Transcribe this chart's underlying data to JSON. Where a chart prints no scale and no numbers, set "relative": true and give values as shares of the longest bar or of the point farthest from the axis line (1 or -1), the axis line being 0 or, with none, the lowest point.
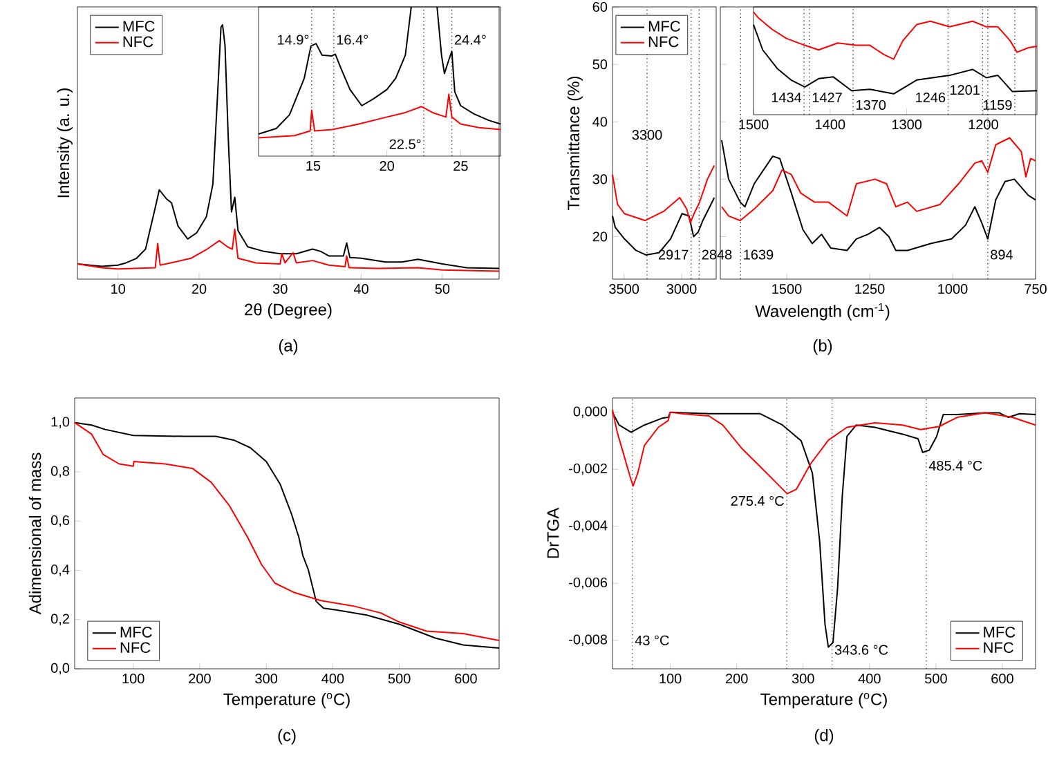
{
  "chart_data": [
    {
      "type": "line",
      "xlabel": "2θ (Degree)",
      "ylabel": "Intensity (a. u.)",
      "relative": true,
      "xlim": [
        5,
        57
      ],
      "xticks": [
        10,
        20,
        30,
        40,
        50
      ],
      "legend": "top left",
      "annotations": [
        "(a)"
      ],
      "series": [
        {
          "name": "MFC",
          "color": "#000000",
          "x": [
            5,
            8,
            10,
            11,
            12.3,
            13.4,
            14.6,
            15.1,
            16,
            16.6,
            17.4,
            18.6,
            19.7,
            20.9,
            21.7,
            22.3,
            22.7,
            22.9,
            23.2,
            23.6,
            24.0,
            24.4,
            24.8,
            26,
            28,
            30,
            32,
            34,
            35,
            36,
            37.8,
            38.2,
            38.6,
            40,
            43,
            45,
            47,
            50,
            53,
            57
          ],
          "values": [
            0.06,
            0.05,
            0.055,
            0.064,
            0.082,
            0.118,
            0.282,
            0.351,
            0.315,
            0.3,
            0.209,
            0.158,
            0.182,
            0.245,
            0.373,
            0.736,
            0.99,
            1,
            0.918,
            0.555,
            0.264,
            0.322,
            0.191,
            0.127,
            0.109,
            0.1,
            0.1,
            0.118,
            0.109,
            0.091,
            0.091,
            0.142,
            0.085,
            0.082,
            0.067,
            0.067,
            0.078,
            0.06,
            0.045,
            0.042
          ]
        },
        {
          "name": "NFC",
          "color": "#ff0000",
          "x": [
            5,
            8,
            10,
            14.6,
            14.9,
            15.2,
            17,
            19,
            21,
            22.5,
            23.5,
            24.1,
            24.4,
            24.8,
            27,
            30,
            30.2,
            30.6,
            31.6,
            32,
            34,
            36,
            38,
            38.2,
            38.5,
            42,
            47,
            50,
            57
          ],
          "values": [
            0.06,
            0.045,
            0.04,
            0.045,
            0.14,
            0.055,
            0.067,
            0.082,
            0.118,
            0.151,
            0.127,
            0.118,
            0.196,
            0.082,
            0.064,
            0.06,
            0.1,
            0.064,
            0.104,
            0.064,
            0.073,
            0.055,
            0.049,
            0.091,
            0.045,
            0.042,
            0.045,
            0.036,
            0.031
          ]
        }
      ]
    },
    {
      "type": "line",
      "relative": true,
      "xlim": [
        11.3,
        27.7
      ],
      "xticks": [
        15,
        20,
        25
      ],
      "tick_labels": "x",
      "ref_lines": [
        {
          "axis": "x",
          "value": 14.9,
          "label": "14.9°",
          "color": "#333333",
          "line_style": "dotted"
        },
        {
          "axis": "x",
          "value": 16.4,
          "label": "16.4°",
          "color": "#333333",
          "line_style": "dotted"
        },
        {
          "axis": "x",
          "value": 22.5,
          "label": "22.5°",
          "color": "#333333",
          "line_style": "dotted"
        },
        {
          "axis": "x",
          "value": 24.4,
          "label": "24.4°",
          "color": "#333333",
          "line_style": "dotted"
        }
      ],
      "series": [
        {
          "color": "#000000",
          "x": [
            11.3,
            12.5,
            13.4,
            14.4,
            14.85,
            15.2,
            15.6,
            16.25,
            16.5,
            16.9,
            17.5,
            18.3,
            19.1,
            20.0,
            20.6,
            21.25,
            21.65,
            22.5,
            23.4,
            23.7,
            23.9,
            24.2,
            24.4,
            24.6,
            25.0,
            25.9,
            26.9,
            27.7
          ],
          "values": [
            0.148,
            0.185,
            0.277,
            0.523,
            0.738,
            0.754,
            0.677,
            0.671,
            0.683,
            0.585,
            0.446,
            0.338,
            0.385,
            0.446,
            0.523,
            0.677,
            1.0,
            null,
            1.0,
            0.677,
            0.554,
            0.646,
            0.702,
            0.431,
            0.338,
            0.283,
            0.24,
            0.215
          ]
        },
        {
          "color": "#ff0000",
          "x": [
            11.3,
            13.75,
            14.8,
            14.9,
            15.1,
            16.3,
            18.1,
            20,
            21.25,
            22.35,
            23.1,
            24.0,
            24.2,
            24.4,
            25,
            26.25,
            27.7
          ],
          "values": [
            0.123,
            0.138,
            0.169,
            0.308,
            0.169,
            0.178,
            0.215,
            0.262,
            0.292,
            0.332,
            0.292,
            0.262,
            0.415,
            0.262,
            0.215,
            0.191,
            0.178
          ]
        }
      ]
    },
    {
      "type": "line",
      "ylabel": "Transmittance (%)",
      "xlim": [
        3600,
        2700
      ],
      "xticks": [
        3500,
        3000
      ],
      "ylim": [
        12.6,
        60
      ],
      "yticks": [
        20,
        30,
        40,
        50,
        60
      ],
      "legend": "top left",
      "ref_lines": [
        {
          "axis": "x",
          "value": 3300,
          "label": "3300",
          "color": "#333333",
          "line_style": "dotted"
        },
        {
          "axis": "x",
          "value": 2917,
          "label": "2917",
          "color": "#333333",
          "line_style": "dotted"
        },
        {
          "axis": "x",
          "value": 2848,
          "label": "2848",
          "color": "#333333",
          "line_style": "dotted"
        }
      ],
      "series": [
        {
          "name": "MFC",
          "color": "#000000",
          "x": [
            3600,
            3576,
            3496,
            3396,
            3308,
            3196,
            3096,
            2996,
            2936,
            2896,
            2856,
            2816,
            2716
          ],
          "values": [
            23.6,
            21.6,
            19.6,
            17.6,
            16.8,
            17.2,
            19.6,
            24,
            23.6,
            20,
            20.8,
            22.8,
            26.8
          ]
        },
        {
          "name": "NFC",
          "color": "#ff0000",
          "x": [
            3600,
            3556,
            3496,
            3316,
            3156,
            3016,
            2956,
            2924,
            2892,
            2844,
            2776,
            2716
          ],
          "values": [
            30.8,
            25.6,
            24,
            22.8,
            24.4,
            26.8,
            24.8,
            22.4,
            24,
            26,
            30,
            32.4
          ]
        }
      ]
    },
    {
      "type": "line",
      "xlabel": "Wavelength (cm$^{-1}$)",
      "xlim": [
        1700,
        750
      ],
      "xticks": [
        1500,
        1250,
        1000,
        750
      ],
      "ylim": [
        12.6,
        60
      ],
      "yticks": [
        20,
        30,
        40,
        50,
        60
      ],
      "tick_labels": "x",
      "ref_lines": [
        {
          "axis": "x",
          "value": 1639,
          "label": "1639",
          "color": "#333333",
          "line_style": "dotted"
        },
        {
          "axis": "x",
          "value": 894,
          "label": "894",
          "color": "#333333",
          "line_style": "dotted"
        }
      ],
      "annotations": [
        "(b)"
      ],
      "series": [
        {
          "color": "#000000",
          "x": [
            1696,
            1675,
            1640,
            1626,
            1598,
            1542,
            1521,
            1486,
            1451,
            1423,
            1395,
            1367,
            1318,
            1290,
            1255,
            1220,
            1192,
            1171,
            1136,
            1066,
            1003,
            961,
            933,
            912,
            894,
            870,
            842,
            814,
            772,
            750
          ],
          "values": [
            36.8,
            30,
            26,
            25.2,
            29.2,
            34,
            33.6,
            27.6,
            21.2,
            18.8,
            20.4,
            18,
            17.6,
            19.6,
            20.4,
            21.6,
            20,
            17.6,
            17.6,
            18.8,
            19.6,
            22,
            25.2,
            22.4,
            19.6,
            26.4,
            29.6,
            30,
            27.2,
            26.4
          ]
        },
        {
          "color": "#ff0000",
          "x": [
            1696,
            1675,
            1640,
            1598,
            1542,
            1514,
            1486,
            1458,
            1416,
            1374,
            1318,
            1290,
            1234,
            1199,
            1171,
            1136,
            1108,
            1038,
            982,
            933,
            912,
            894,
            870,
            828,
            793,
            779,
            765,
            750
          ],
          "values": [
            25.2,
            23.6,
            22.8,
            24.8,
            28,
            31.6,
            30.8,
            27.6,
            26,
            26,
            23.6,
            29.2,
            30,
            29.2,
            25.2,
            26,
            24.4,
            25.6,
            29.2,
            32.8,
            33.2,
            31.2,
            36,
            37.2,
            34.8,
            30.4,
            33.6,
            33.2
          ]
        }
      ]
    },
    {
      "type": "line",
      "relative": true,
      "xlim": [
        1500,
        1130
      ],
      "xticks": [
        1500,
        1400,
        1300,
        1200
      ],
      "tick_labels": "x",
      "ref_lines": [
        {
          "axis": "x",
          "value": 1434,
          "label": "1434",
          "color": "#333333",
          "line_style": "dotted"
        },
        {
          "axis": "x",
          "value": 1427,
          "label": "1427",
          "color": "#333333",
          "line_style": "dotted"
        },
        {
          "axis": "x",
          "value": 1370,
          "label": "1370",
          "color": "#333333",
          "line_style": "dotted"
        },
        {
          "axis": "x",
          "value": 1246,
          "label": "1246",
          "color": "#333333",
          "line_style": "dotted"
        },
        {
          "axis": "x",
          "value": 1201,
          "label": "1201",
          "color": "#333333",
          "line_style": "dotted"
        },
        {
          "axis": "x",
          "value": 1159,
          "label": "1159",
          "color": "#333333",
          "line_style": "dotted"
        }
      ],
      "series": [
        {
          "color": "#000000",
          "x": [
            1500,
            1488,
            1469,
            1451,
            1433,
            1415,
            1396,
            1372,
            1348,
            1317,
            1287,
            1244,
            1214,
            1196,
            1181,
            1162,
            1130
          ],
          "values": [
            0.878,
            0.631,
            0.45,
            0.338,
            0.27,
            0.351,
            0.369,
            0.234,
            0.248,
            0.203,
            0.338,
            0.383,
            0.441,
            0.36,
            0.383,
            0.225,
            0.234
          ]
        },
        {
          "color": "#ff0000",
          "x": [
            1500,
            1494,
            1476,
            1457,
            1433,
            1415,
            1390,
            1366,
            1348,
            1330,
            1317,
            1305,
            1287,
            1269,
            1244,
            1214,
            1196,
            1181,
            1165,
            1156,
            1141,
            1130
          ],
          "values": [
            1.0,
            0.946,
            0.833,
            0.743,
            0.676,
            0.631,
            0.698,
            0.676,
            0.676,
            0.586,
            0.541,
            0.721,
            0.878,
            0.91,
            0.856,
            0.91,
            0.856,
            0.856,
            0.721,
            0.608,
            0.653,
            0.667
          ]
        }
      ]
    },
    {
      "type": "line",
      "xlabel": "Temperature ($^{o}$C)",
      "ylabel": "Adimensional of mass",
      "xlim": [
        12,
        650
      ],
      "xticks": [
        100,
        200,
        300,
        400,
        500,
        600
      ],
      "ylim": [
        0,
        1.1
      ],
      "yticks": [
        {
          "value": 0,
          "label": "0,0"
        },
        {
          "value": 0.2,
          "label": "0,2"
        },
        {
          "value": 0.4,
          "label": "0,4"
        },
        {
          "value": 0.6,
          "label": "0,6"
        },
        {
          "value": 0.8,
          "label": "0,8"
        },
        {
          "value": 1.0,
          "label": "1,0"
        }
      ],
      "legend": "bottom left",
      "annotations": [
        "(c)"
      ],
      "series": [
        {
          "name": "MFC",
          "color": "#000000",
          "x": [
            12,
            37.5,
            58,
            100,
            175,
            224,
            251,
            276,
            300,
            321,
            338,
            349,
            355,
            363,
            375,
            386,
            403,
            451,
            500,
            554,
            596,
            650
          ],
          "values": [
            1.0,
            0.99,
            0.972,
            0.948,
            0.944,
            0.944,
            0.929,
            0.898,
            0.842,
            0.749,
            0.628,
            0.534,
            0.46,
            0.404,
            0.274,
            0.246,
            0.24,
            0.218,
            0.181,
            0.125,
            0.097,
            0.084
          ]
        },
        {
          "name": "NFC",
          "color": "#ff0000",
          "x": [
            12,
            37.5,
            55,
            79,
            100,
            101,
            148,
            189,
            217,
            244,
            272,
            293,
            313,
            341,
            382,
            431,
            472,
            500,
            541,
            596,
            650
          ],
          "values": [
            1.0,
            0.953,
            0.87,
            0.832,
            0.823,
            0.842,
            0.832,
            0.814,
            0.758,
            0.665,
            0.534,
            0.423,
            0.348,
            0.311,
            0.277,
            0.255,
            0.227,
            0.19,
            0.153,
            0.143,
            0.115
          ]
        }
      ]
    },
    {
      "type": "line",
      "xlabel": "Temperature ($^{o}$C)",
      "ylabel": "DrTGA",
      "xlim": [
        13,
        650
      ],
      "xticks": [
        100,
        200,
        300,
        400,
        500,
        600
      ],
      "ylim": [
        -0.009,
        0.0005
      ],
      "yticks": [
        {
          "value": 0,
          "label": "0,000"
        },
        {
          "value": -0.002,
          "label": "-0,002"
        },
        {
          "value": -0.004,
          "label": "-0,004"
        },
        {
          "value": -0.006,
          "label": "-0,006"
        },
        {
          "value": -0.008,
          "label": "-0,008"
        }
      ],
      "legend": "bottom right",
      "ref_lines": [
        {
          "axis": "x",
          "value": 43,
          "label": "43 °C",
          "color": "#555555",
          "line_style": "dotted"
        },
        {
          "axis": "x",
          "value": 275.4,
          "label": "275.4 °C",
          "color": "#555555",
          "line_style": "dotted"
        },
        {
          "axis": "x",
          "value": 343.6,
          "label": "343.6 °C",
          "color": "#555555",
          "line_style": "dotted"
        },
        {
          "axis": "x",
          "value": 485.4,
          "label": "485.4 °C",
          "color": "#555555",
          "line_style": "dotted"
        }
      ],
      "annotations": [
        "(d)"
      ],
      "series": [
        {
          "name": "MFC",
          "color": "#000000",
          "x": [
            13,
            23,
            41,
            61,
            89,
            97,
            100,
            158,
            235,
            269,
            297,
            314,
            325,
            333,
            338,
            345,
            352,
            359,
            366,
            380,
            408,
            450,
            473,
            480,
            490,
            501,
            511,
            532,
            574,
            595,
            609,
            626,
            650
          ],
          "values": [
            0,
            -0.00045,
            -0.0007,
            -0.00045,
            -0.0002,
            -0.00018,
            0.0,
            -5e-05,
            -5e-05,
            -0.00045,
            -0.001,
            -0.00214,
            -0.00455,
            -0.00744,
            -0.00824,
            -0.00808,
            -0.00615,
            -0.00294,
            -0.00085,
            -0.00045,
            -0.00053,
            -0.00077,
            -0.00093,
            -0.00141,
            -0.00133,
            -0.00085,
            -8e-05,
            -8e-05,
            -2e-05,
            -2e-05,
            -0.00018,
            -5e-05,
            -8e-05
          ]
        },
        {
          "name": "NFC",
          "color": "#ff0000",
          "x": [
            13,
            20,
            30,
            39,
            44,
            51,
            61,
            82,
            97,
            100,
            117,
            158,
            179,
            207,
            235,
            259,
            276,
            290,
            311,
            338,
            366,
            408,
            450,
            477,
            505,
            532,
            574,
            615,
            650
          ],
          "values": [
            8e-05,
            -0.00069,
            -0.00149,
            -0.00222,
            -0.00259,
            -0.00214,
            -0.00117,
            -0.00053,
            -0.00029,
            0.0,
            -5e-05,
            -0.00013,
            -0.00045,
            -0.00125,
            -0.0019,
            -0.00246,
            -0.00286,
            -0.0027,
            -0.00182,
            -0.00098,
            -0.00053,
            -0.00037,
            -0.00045,
            -0.00061,
            -0.0005,
            -0.00018,
            -2e-05,
            -0.00018,
            -0.00045
          ]
        }
      ]
    }
  ]
}
